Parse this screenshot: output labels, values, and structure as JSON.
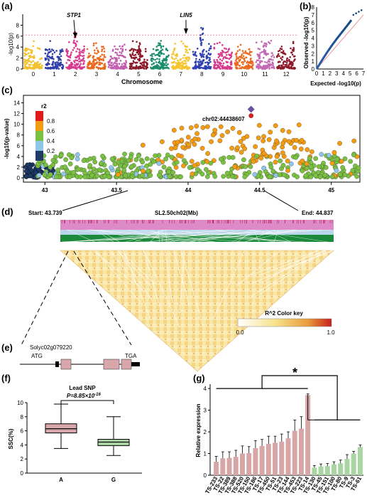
{
  "panels": {
    "a": {
      "label": "(a)",
      "ylabel": "-log10(p)",
      "xlabel": "Chromosome",
      "yticks": [
        "0",
        "2",
        "4",
        "6",
        "8"
      ],
      "chromosomes": [
        "0",
        "1",
        "2",
        "3",
        "4",
        "5",
        "6",
        "7",
        "8",
        "9",
        "10",
        "11",
        "12"
      ],
      "colors": [
        "#f2c12e",
        "#2e3ea8",
        "#d83a8f",
        "#e86a1f",
        "#c45fb0",
        "#8a1a2a",
        "#1b8c6d",
        "#f5c42f",
        "#2f3fb0",
        "#d63a8a",
        "#e86b20",
        "#c46ab5",
        "#8f1a2a"
      ],
      "annotations": [
        {
          "gene": "STP1"
        },
        {
          "gene": "LIN5"
        }
      ],
      "threshold": 6.2
    },
    "b": {
      "label": "(b)",
      "ylabel": "Observed -log10(p)",
      "xlabel": "Expected -log10(p)",
      "xticks": [
        "0",
        "1",
        "2",
        "3",
        "4",
        "5",
        "6",
        "7"
      ],
      "yticks": [
        "0",
        "1",
        "2",
        "3",
        "4",
        "5",
        "6",
        "7",
        "8"
      ]
    },
    "c": {
      "label": "(c)",
      "ylabel": "-log10(p-value)",
      "yticks": [
        "0",
        "2",
        "4",
        "6",
        "8",
        "10",
        "12",
        "14"
      ],
      "xticks": [
        "43",
        "43.5",
        "44",
        "44.5",
        "45"
      ],
      "legend_title": "r2",
      "legend_labels": [
        "0.8",
        "0.6",
        "0.4",
        "0.2"
      ],
      "legend_colors": [
        "#e31a1c",
        "#f39c12",
        "#7ac142",
        "#8fc6e8",
        "#1f3a68"
      ],
      "lead_label": "chr02:44438607"
    },
    "d": {
      "label": "(d)",
      "start": "Start: 43.739",
      "title": "SL2.50ch02(Mb)",
      "end": "End: 44.837",
      "color_key_title": "R^2 Color key",
      "color_key_min": "0.0",
      "color_key_max": "1.0"
    },
    "e": {
      "label": "(e)",
      "gene": "Solyc02g079220",
      "atg": "ATG",
      "tga": "TGA"
    },
    "f": {
      "label": "(f)",
      "title": "Lead SNP",
      "pvalue": "P=8.85×10",
      "pvalue_exp": "-16",
      "ylabel": "SSC(%)",
      "yticks": [
        "0",
        "2",
        "4",
        "6",
        "8",
        "10"
      ],
      "groups": [
        "A",
        "G"
      ]
    },
    "g": {
      "label": "(g)",
      "ylabel": "Relative expression",
      "yticks": [
        "0",
        "1",
        "2",
        "3",
        "4"
      ],
      "star": "*"
    }
  },
  "chart_data": [
    {
      "type": "bar",
      "title": "",
      "ylabel": "Relative expression",
      "ylim": [
        0,
        4
      ],
      "categories": [
        "TS-233",
        "TS-22",
        "TS-389",
        "TS-388",
        "TS-520",
        "TS-150",
        "TS-186",
        "TS-17",
        "TS-450",
        "TS-51",
        "TS-23",
        "TS-144",
        "TS-453",
        "TS-223",
        "TS-14",
        "TS-130",
        "TS-45",
        "TS-151",
        "TS-100",
        "TS-80",
        "TS-9",
        "TS-3",
        "TS-61"
      ],
      "values": [
        0.62,
        0.78,
        0.8,
        0.85,
        1.0,
        1.02,
        1.25,
        1.35,
        1.45,
        1.5,
        1.55,
        1.7,
        2.05,
        2.15,
        3.7,
        0.35,
        0.4,
        0.42,
        0.5,
        0.55,
        0.75,
        1.0,
        1.3
      ],
      "errors": [
        0.25,
        0.3,
        0.28,
        0.3,
        0.35,
        0.3,
        0.35,
        0.3,
        0.35,
        0.3,
        0.35,
        0.3,
        0.5,
        0.55,
        0.05,
        0.1,
        0.12,
        0.12,
        0.12,
        0.15,
        0.2,
        0.1,
        0.1
      ],
      "group_colors": [
        "#d7a7a7",
        "#a8d5a2"
      ]
    },
    {
      "type": "box",
      "title": "Lead SNP",
      "ylabel": "SSC(%)",
      "ylim": [
        0,
        10
      ],
      "groups": [
        "A",
        "G"
      ],
      "stats": [
        {
          "min": 3.5,
          "q1": 5.7,
          "median": 6.3,
          "q3": 7.0,
          "max": 9.8
        },
        {
          "min": 2.5,
          "q1": 3.9,
          "median": 4.4,
          "q3": 4.8,
          "max": 8.0
        }
      ]
    }
  ]
}
